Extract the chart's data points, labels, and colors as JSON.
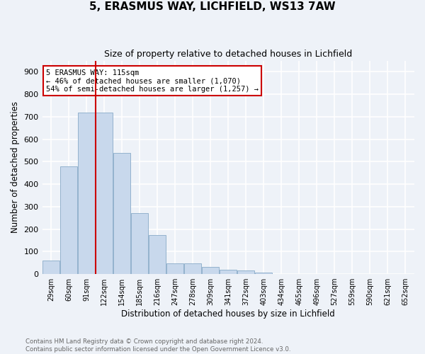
{
  "title": "5, ERASMUS WAY, LICHFIELD, WS13 7AW",
  "subtitle": "Size of property relative to detached houses in Lichfield",
  "xlabel": "Distribution of detached houses by size in Lichfield",
  "ylabel": "Number of detached properties",
  "bar_color": "#c8d8ec",
  "bar_edge_color": "#88aac8",
  "background_color": "#eef2f8",
  "grid_color": "#ffffff",
  "categories": [
    "29sqm",
    "60sqm",
    "91sqm",
    "122sqm",
    "154sqm",
    "185sqm",
    "216sqm",
    "247sqm",
    "278sqm",
    "309sqm",
    "341sqm",
    "372sqm",
    "403sqm",
    "434sqm",
    "465sqm",
    "496sqm",
    "527sqm",
    "559sqm",
    "590sqm",
    "621sqm",
    "652sqm"
  ],
  "values": [
    60,
    480,
    718,
    718,
    540,
    272,
    172,
    47,
    47,
    32,
    20,
    15,
    8,
    0,
    0,
    0,
    0,
    0,
    0,
    0,
    0
  ],
  "vline_x": 2.5,
  "vline_color": "#cc0000",
  "annotation_text": "5 ERASMUS WAY: 115sqm\n← 46% of detached houses are smaller (1,070)\n54% of semi-detached houses are larger (1,257) →",
  "annotation_box_color": "#ffffff",
  "annotation_box_edge": "#cc0000",
  "footer_text": "Contains HM Land Registry data © Crown copyright and database right 2024.\nContains public sector information licensed under the Open Government Licence v3.0.",
  "ylim": [
    0,
    950
  ],
  "yticks": [
    0,
    100,
    200,
    300,
    400,
    500,
    600,
    700,
    800,
    900
  ]
}
